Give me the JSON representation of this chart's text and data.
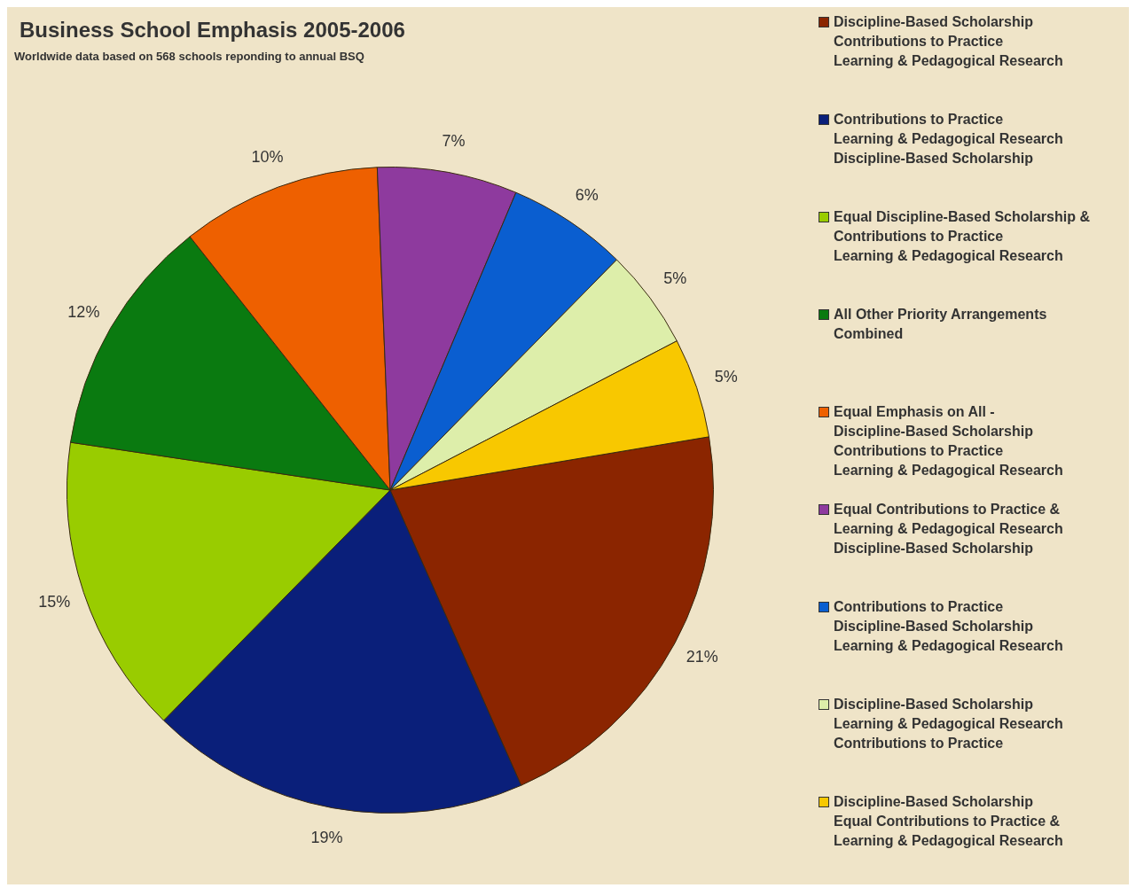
{
  "chart_data": {
    "type": "pie",
    "title": "Business School Emphasis 2005-2006",
    "subtitle": "Worldwide data based on 568 schools reponding to annual BSQ",
    "categories": [
      "Discipline-Based Scholarship\nContributions to Practice\nLearning & Pedagogical Research",
      "Contributions to Practice\nLearning & Pedagogical Research\nDiscipline-Based Scholarship",
      "Equal Discipline-Based Scholarship &\nContributions to Practice\nLearning & Pedagogical Research",
      "All Other Priority Arrangements\nCombined",
      "Equal Emphasis on All -\nDiscipline-Based Scholarship\nContributions to Practice\nLearning & Pedagogical Research",
      "Equal Contributions to Practice &\nLearning & Pedagogical Research\nDiscipline-Based Scholarship",
      "Contributions to Practice\nDiscipline-Based Scholarship\nLearning & Pedagogical Research",
      "Discipline-Based Scholarship\nLearning & Pedagogical Research\nContributions to Practice",
      "Discipline-Based Scholarship\nEqual Contributions to Practice &\nLearning & Pedagogical Research"
    ],
    "values": [
      21,
      19,
      15,
      12,
      10,
      7,
      6,
      5,
      5
    ],
    "value_labels": [
      "21%",
      "19%",
      "15%",
      "12%",
      "10%",
      "7%",
      "6%",
      "5%",
      "5%"
    ],
    "colors": [
      "#8b2500",
      "#0a1f7a",
      "#99cc00",
      "#0a7a10",
      "#ee6000",
      "#8e3a9e",
      "#0a5ed0",
      "#ddeeaa",
      "#f8c800"
    ],
    "legend": "right"
  }
}
